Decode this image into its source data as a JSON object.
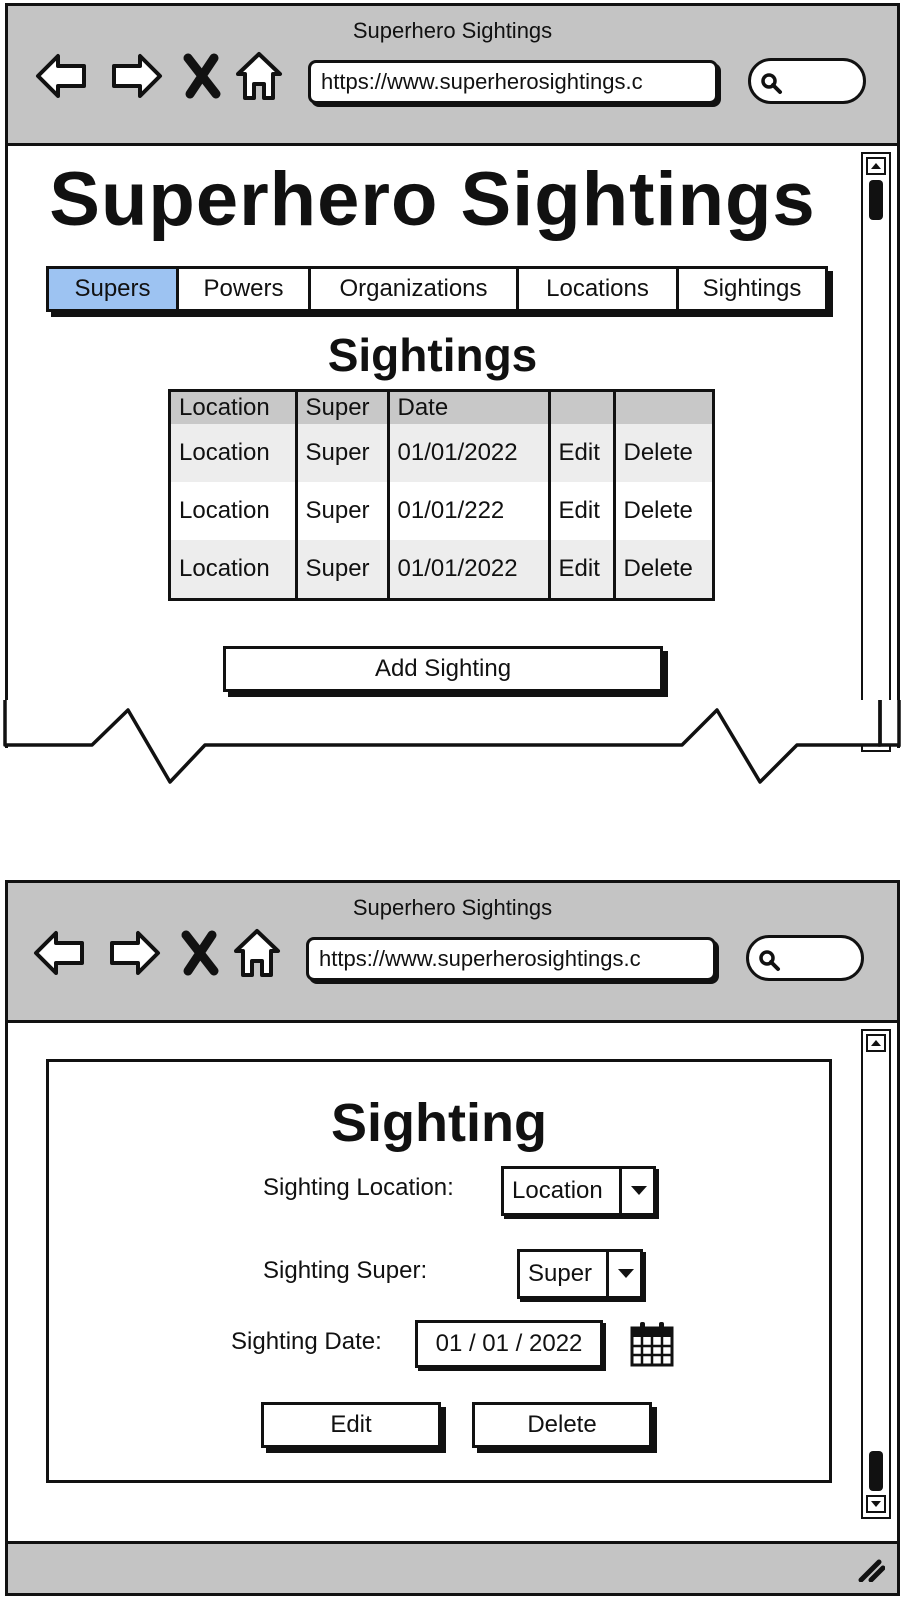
{
  "screen_list": {
    "window_title": "Superhero Sightings",
    "url": "https://www.superherosightings.c",
    "page_title": "Superhero Sightings",
    "tabs": [
      {
        "label": "Supers",
        "active": true
      },
      {
        "label": "Powers",
        "active": false
      },
      {
        "label": "Organizations",
        "active": false
      },
      {
        "label": "Locations",
        "active": false
      },
      {
        "label": "Sightings",
        "active": false
      }
    ],
    "section_title": "Sightings",
    "table": {
      "headers": [
        "Location",
        "Super",
        "Date",
        "",
        ""
      ],
      "rows": [
        {
          "location": "Location",
          "super": "Super",
          "date": "01/01/2022",
          "edit": "Edit",
          "delete": "Delete"
        },
        {
          "location": "Location",
          "super": "Super",
          "date": "01/01/222",
          "edit": "Edit",
          "delete": "Delete"
        },
        {
          "location": "Location",
          "super": "Super",
          "date": "01/01/2022",
          "edit": "Edit",
          "delete": "Delete"
        }
      ]
    },
    "add_button": "Add Sighting"
  },
  "screen_detail": {
    "window_title": "Superhero Sightings",
    "url": "https://www.superherosightings.c",
    "dialog_title": "Sighting",
    "location_label": "Sighting Location:",
    "location_value": "Location",
    "super_label": "Sighting Super:",
    "super_value": "Super",
    "date_label": "Sighting Date:",
    "date_value": "01 / 01 / 2022",
    "edit_button": "Edit",
    "delete_button": "Delete"
  },
  "icons": {
    "back": "back-arrow-icon",
    "forward": "forward-arrow-icon",
    "stop": "stop-x-icon",
    "home": "home-icon",
    "search": "search-icon",
    "calendar": "calendar-icon",
    "dropdown": "chevron-down-icon",
    "resize": "resize-grip-icon"
  },
  "colors": {
    "chrome": "#c4c4c4",
    "active_tab": "#9dc3f2",
    "header_row": "#c8c8c8",
    "stripe_row": "#ededed"
  }
}
